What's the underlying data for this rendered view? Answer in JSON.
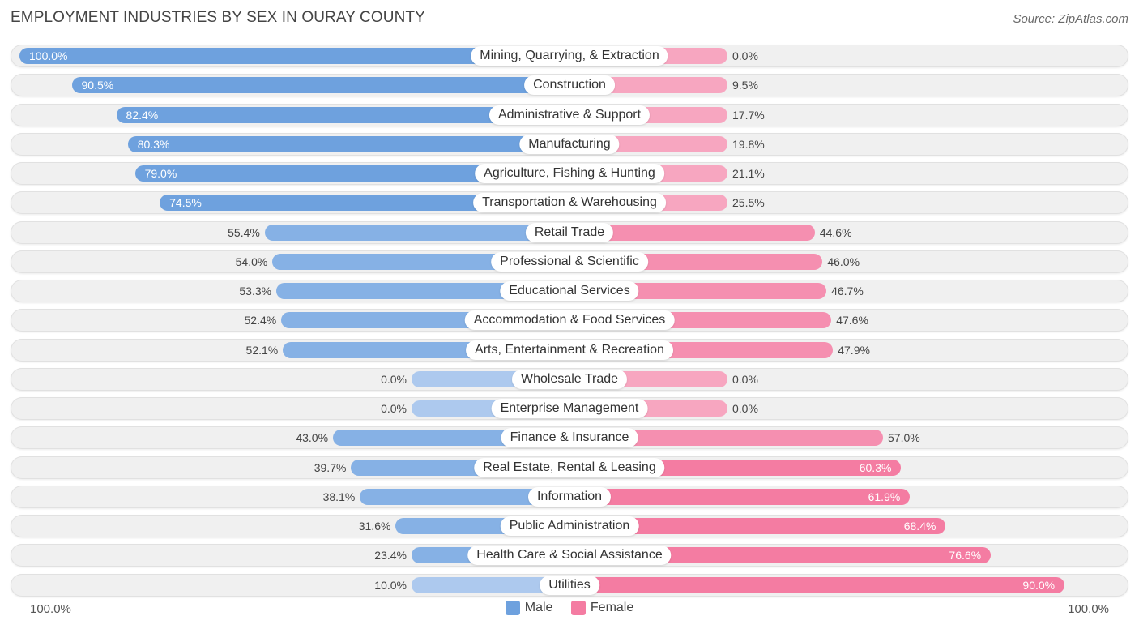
{
  "title": "EMPLOYMENT INDUSTRIES BY SEX IN OURAY COUNTY",
  "source": "Source: ZipAtlas.com",
  "colors": {
    "male": "#6ea1de",
    "male_light": "#adc9ee",
    "female": "#f47ca2",
    "female_light": "#f7a6c0",
    "track": "#f0f0f0"
  },
  "chart_data": {
    "type": "bar",
    "orientation": "horizontal-diverging",
    "title": "EMPLOYMENT INDUSTRIES BY SEX IN OURAY COUNTY",
    "xlim": [
      -100,
      100
    ],
    "axis_left_label": "100.0%",
    "axis_right_label": "100.0%",
    "legend": [
      "Male",
      "Female"
    ],
    "legend_position": "bottom-center",
    "categories": [
      "Mining, Quarrying, & Extraction",
      "Construction",
      "Administrative & Support",
      "Manufacturing",
      "Agriculture, Fishing & Hunting",
      "Transportation & Warehousing",
      "Retail Trade",
      "Professional & Scientific",
      "Educational Services",
      "Accommodation & Food Services",
      "Arts, Entertainment & Recreation",
      "Wholesale Trade",
      "Enterprise Management",
      "Finance & Insurance",
      "Real Estate, Rental & Leasing",
      "Information",
      "Public Administration",
      "Health Care & Social Assistance",
      "Utilities"
    ],
    "series": [
      {
        "name": "Male",
        "values": [
          100.0,
          90.5,
          82.4,
          80.3,
          79.0,
          74.5,
          55.4,
          54.0,
          53.3,
          52.4,
          52.1,
          0.0,
          0.0,
          43.0,
          39.7,
          38.1,
          31.6,
          23.4,
          10.0
        ],
        "labels": [
          "100.0%",
          "90.5%",
          "82.4%",
          "80.3%",
          "79.0%",
          "74.5%",
          "55.4%",
          "54.0%",
          "53.3%",
          "52.4%",
          "52.1%",
          "0.0%",
          "0.0%",
          "43.0%",
          "39.7%",
          "38.1%",
          "31.6%",
          "23.4%",
          "10.0%"
        ]
      },
      {
        "name": "Female",
        "values": [
          0.0,
          9.5,
          17.7,
          19.8,
          21.1,
          25.5,
          44.6,
          46.0,
          46.7,
          47.6,
          47.9,
          0.0,
          0.0,
          57.0,
          60.3,
          61.9,
          68.4,
          76.6,
          90.0
        ],
        "labels": [
          "0.0%",
          "9.5%",
          "17.7%",
          "19.8%",
          "21.1%",
          "25.5%",
          "44.6%",
          "46.0%",
          "46.7%",
          "47.6%",
          "47.9%",
          "0.0%",
          "0.0%",
          "57.0%",
          "60.3%",
          "61.9%",
          "68.4%",
          "76.6%",
          "90.0%"
        ]
      }
    ]
  }
}
